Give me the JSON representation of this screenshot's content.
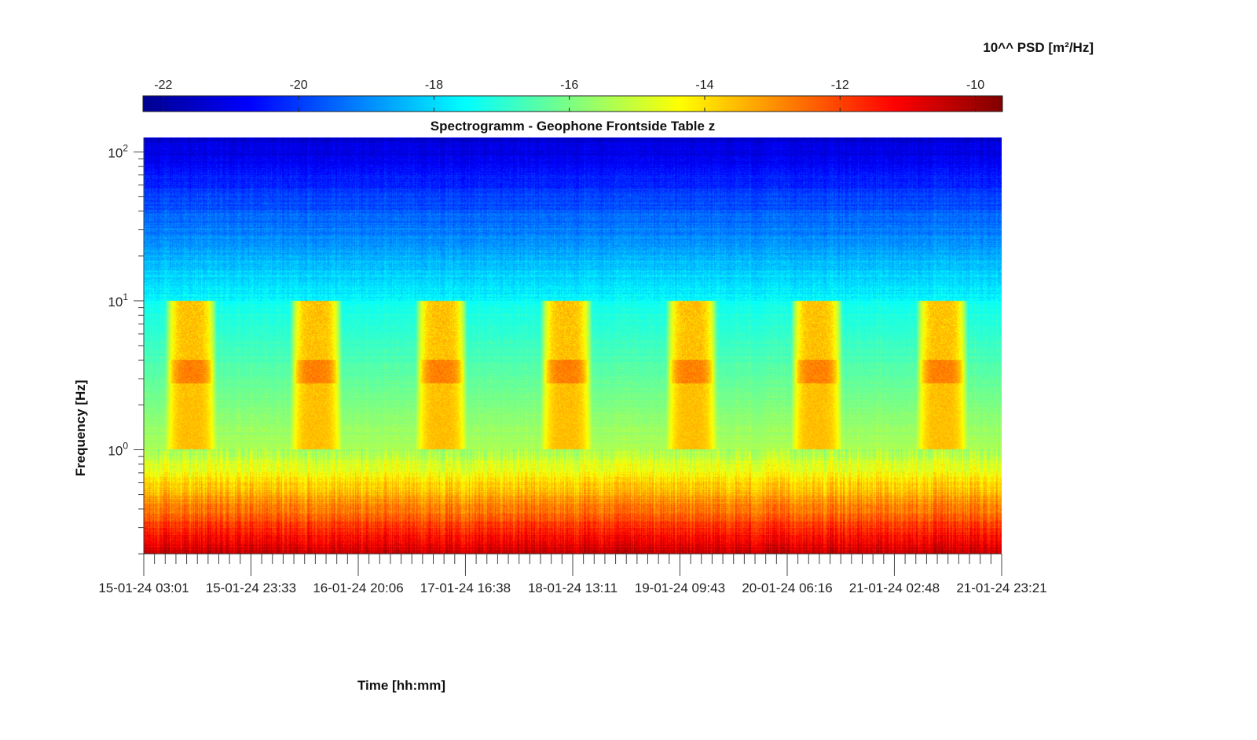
{
  "chart_data": {
    "type": "heatmap",
    "title": "Spectrogramm - Geophone Frontside Table z",
    "xlabel": "Time [hh:mm]",
    "ylabel": "Frequency [Hz]",
    "y_scale": "log",
    "ylim": [
      0.2,
      125
    ],
    "y_ticks": [
      {
        "base": "10",
        "exp": "0",
        "value": 1
      },
      {
        "base": "10",
        "exp": "1",
        "value": 10
      },
      {
        "base": "10",
        "exp": "2",
        "value": 100
      }
    ],
    "x_ticks": [
      "15-01-24 03:01",
      "15-01-24 23:33",
      "16-01-24 20:06",
      "17-01-24 16:38",
      "18-01-24 13:11",
      "19-01-24 09:43",
      "20-01-24 06:16",
      "21-01-24 02:48",
      "21-01-24 23:21"
    ],
    "xlim": [
      "15-01-24 03:01",
      "21-01-24 23:21"
    ],
    "colorbar": {
      "label": "10^^ PSD [m²/Hz]",
      "colormap": "jet",
      "range": [
        -22.3,
        -9.6
      ],
      "ticks": [
        "-22",
        "-20",
        "-18",
        "-16",
        "-14",
        "-12",
        "-10"
      ],
      "placement": "top"
    },
    "features": {
      "background_trend": "PSD decreases with frequency: about -10.5 at 0.2 Hz, -15.5 at 1 Hz, -17.5 at 10 Hz, -21 at 100 Hz",
      "daily_activity_bands_hz": [
        1,
        10
      ],
      "activity_level_peak": -13.5,
      "activity_day_centers": [
        "15-01-24 12:00",
        "16-01-24 12:00",
        "17-01-24 12:00",
        "18-01-24 12:00",
        "19-01-24 12:00",
        "20-01-24 12:00",
        "21-01-24 12:00"
      ]
    }
  }
}
